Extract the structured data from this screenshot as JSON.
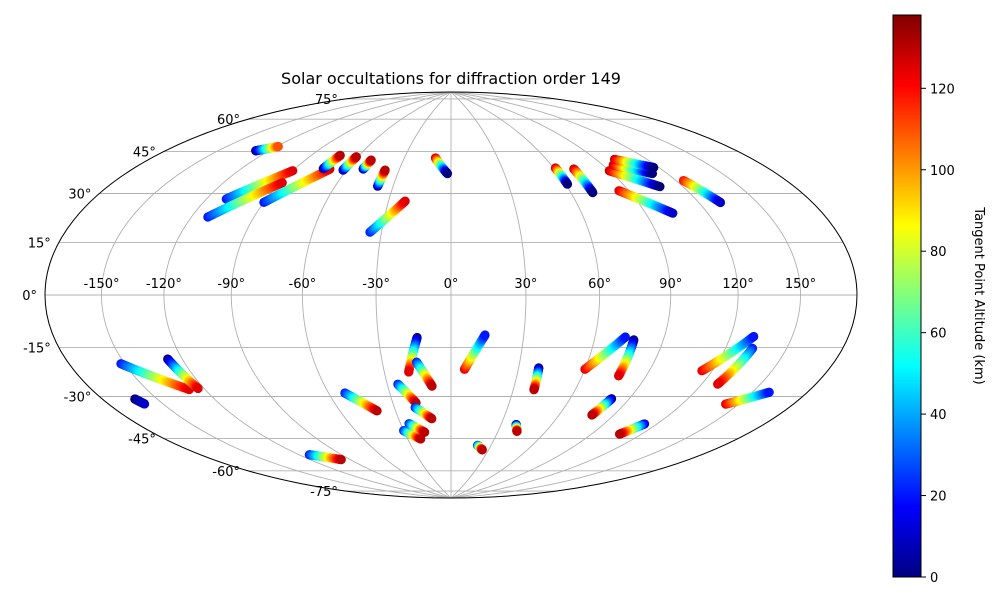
{
  "title": "Solar occultations for diffraction order 149",
  "projection": "Hammer-Aitoff",
  "lon_ticks": [
    -150,
    -120,
    -90,
    -60,
    -30,
    0,
    30,
    60,
    90,
    120,
    150
  ],
  "lat_ticks": [
    -75,
    -60,
    -45,
    -30,
    -15,
    0,
    15,
    30,
    45,
    60,
    75
  ],
  "lon_tick_labels": [
    "-150°",
    "-120°",
    "-90°",
    "-60°",
    "-30°",
    "0°",
    "30°",
    "60°",
    "90°",
    "120°",
    "150°"
  ],
  "lat_tick_labels": [
    "-75°",
    "-60°",
    "-45°",
    "-30°",
    "-15°",
    "0°",
    "15°",
    "30°",
    "45°",
    "60°",
    "75°"
  ],
  "colorbar": {
    "label": "Tangent Point Altitude (km)",
    "min": 0,
    "max": 138,
    "ticks": [
      0,
      20,
      40,
      60,
      80,
      100,
      120
    ],
    "tick_labels": [
      "0",
      "20",
      "40",
      "60",
      "80",
      "100",
      "120"
    ],
    "colormap": "jet"
  },
  "chart_data": {
    "type": "scatter",
    "title": "Solar occultations for diffraction order 149",
    "color_variable": "Tangent Point Altitude (km)",
    "tracks": [
      {
        "start": [
          -128,
          53
        ],
        "end": [
          -119,
          56
        ],
        "alt_start": 0,
        "alt_end": 110
      },
      {
        "start": [
          -110,
          35
        ],
        "end": [
          -90,
          48
        ],
        "alt_start": 20,
        "alt_end": 125
      },
      {
        "start": [
          -112,
          28
        ],
        "end": [
          -89,
          43
        ],
        "alt_start": 20,
        "alt_end": 125
      },
      {
        "start": [
          -90,
          35
        ],
        "end": [
          -70,
          50
        ],
        "alt_start": 20,
        "alt_end": 125
      },
      {
        "start": [
          -74,
          50
        ],
        "end": [
          -72,
          56
        ],
        "alt_start": 0,
        "alt_end": 130
      },
      {
        "start": [
          -62,
          50
        ],
        "end": [
          -61,
          56
        ],
        "alt_start": 0,
        "alt_end": 130
      },
      {
        "start": [
          -51,
          51
        ],
        "end": [
          -50,
          55
        ],
        "alt_start": 0,
        "alt_end": 130
      },
      {
        "start": [
          -38,
          44
        ],
        "end": [
          -38,
          51
        ],
        "alt_start": 0,
        "alt_end": 130
      },
      {
        "start": [
          -35,
          25
        ],
        "end": [
          -22,
          38
        ],
        "alt_start": 20,
        "alt_end": 125
      },
      {
        "start": [
          -10,
          57
        ],
        "end": [
          -2,
          50
        ],
        "alt_start": 130,
        "alt_end": 0
      },
      {
        "start": [
          61,
          51
        ],
        "end": [
          61,
          44
        ],
        "alt_start": 130,
        "alt_end": 0
      },
      {
        "start": [
          71,
          50
        ],
        "end": [
          71,
          40
        ],
        "alt_start": 130,
        "alt_end": 0
      },
      {
        "start": [
          85,
          40
        ],
        "end": [
          103,
          30
        ],
        "alt_start": 125,
        "alt_end": 10
      },
      {
        "start": [
          90,
          48
        ],
        "end": [
          108,
          40
        ],
        "alt_start": 130,
        "alt_end": 0
      },
      {
        "start": [
          96,
          50
        ],
        "end": [
          112,
          45
        ],
        "alt_start": 130,
        "alt_end": 0
      },
      {
        "start": [
          101,
          52
        ],
        "end": [
          117,
          47
        ],
        "alt_start": 130,
        "alt_end": 0
      },
      {
        "start": [
          124,
          41
        ],
        "end": [
          131,
          32
        ],
        "alt_start": 120,
        "alt_end": 10
      },
      {
        "start": [
          -152,
          -22
        ],
        "end": [
          -128,
          -33
        ],
        "alt_start": 20,
        "alt_end": 125
      },
      {
        "start": [
          -162,
          -33
        ],
        "end": [
          -160,
          -35
        ],
        "alt_start": 0,
        "alt_end": 10
      },
      {
        "start": [
          -127,
          -22
        ],
        "end": [
          -123,
          -33
        ],
        "alt_start": 0,
        "alt_end": 125
      },
      {
        "start": [
          -113,
          -62
        ],
        "end": [
          -97,
          -66
        ],
        "alt_start": 20,
        "alt_end": 130
      },
      {
        "start": [
          -52,
          -39
        ],
        "end": [
          -40,
          -47
        ],
        "alt_start": 20,
        "alt_end": 130
      },
      {
        "start": [
          -30,
          -56
        ],
        "end": [
          -21,
          -60
        ],
        "alt_start": 20,
        "alt_end": 130
      },
      {
        "start": [
          -25,
          -53
        ],
        "end": [
          -17,
          -57
        ],
        "alt_start": 20,
        "alt_end": 130
      },
      {
        "start": [
          -25,
          -36
        ],
        "end": [
          -18,
          -44
        ],
        "alt_start": 20,
        "alt_end": 130
      },
      {
        "start": [
          -19,
          -46
        ],
        "end": [
          -11,
          -51
        ],
        "alt_start": 20,
        "alt_end": 130
      },
      {
        "start": [
          -14,
          -17
        ],
        "end": [
          -19,
          -31
        ],
        "alt_start": 0,
        "alt_end": 125
      },
      {
        "start": [
          -15,
          -27
        ],
        "end": [
          -9,
          -37
        ],
        "alt_start": 20,
        "alt_end": 130
      },
      {
        "start": [
          6,
          -30
        ],
        "end": [
          14,
          -16
        ],
        "alt_start": 125,
        "alt_end": 20
      },
      {
        "start": [
          20,
          -63
        ],
        "end": [
          25,
          -65
        ],
        "alt_start": 20,
        "alt_end": 130
      },
      {
        "start": [
          39,
          -29
        ],
        "end": [
          40,
          -38
        ],
        "alt_start": 0,
        "alt_end": 130
      },
      {
        "start": [
          39,
          -53
        ],
        "end": [
          42,
          -56
        ],
        "alt_start": 0,
        "alt_end": 130
      },
      {
        "start": [
          60,
          -29
        ],
        "end": [
          73,
          -16
        ],
        "alt_start": 125,
        "alt_end": 20
      },
      {
        "start": [
          77,
          -17
        ],
        "end": [
          77,
          -31
        ],
        "alt_start": 0,
        "alt_end": 125
      },
      {
        "start": [
          81,
          -40
        ],
        "end": [
          78,
          -47
        ],
        "alt_start": 0,
        "alt_end": 130
      },
      {
        "start": [
          113,
          -48
        ],
        "end": [
          107,
          -53
        ],
        "alt_start": 10,
        "alt_end": 130
      },
      {
        "start": [
          115,
          -27
        ],
        "end": [
          131,
          -14
        ],
        "alt_start": 125,
        "alt_end": 20
      },
      {
        "start": [
          133,
          -18
        ],
        "end": [
          128,
          -31
        ],
        "alt_start": 20,
        "alt_end": 125
      },
      {
        "start": [
          143,
          -37
        ],
        "end": [
          159,
          -31
        ],
        "alt_start": 125,
        "alt_end": 20
      }
    ]
  }
}
